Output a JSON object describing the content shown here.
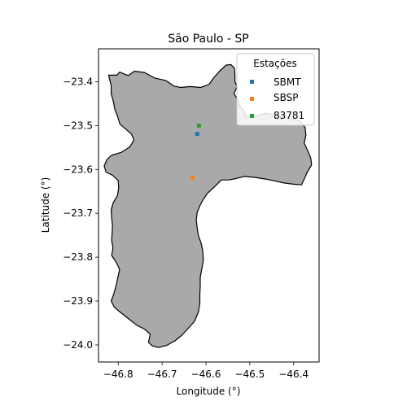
{
  "title": "São Paulo - SP",
  "xlabel": "Longitude (°)",
  "ylabel": "Latitude (°)",
  "xlim": [
    -46.845,
    -46.342
  ],
  "ylim": [
    -24.039,
    -23.325
  ],
  "x_ticks": [
    {
      "v": -46.8,
      "label": "−46.8"
    },
    {
      "v": -46.7,
      "label": "−46.7"
    },
    {
      "v": -46.6,
      "label": "−46.6"
    },
    {
      "v": -46.5,
      "label": "−46.5"
    },
    {
      "v": -46.4,
      "label": "−46.4"
    }
  ],
  "y_ticks": [
    {
      "v": -23.4,
      "label": "−23.4"
    },
    {
      "v": -23.5,
      "label": "−23.5"
    },
    {
      "v": -23.6,
      "label": "−23.6"
    },
    {
      "v": -23.7,
      "label": "−23.7"
    },
    {
      "v": -23.8,
      "label": "−23.8"
    },
    {
      "v": -23.9,
      "label": "−23.9"
    },
    {
      "v": -24.0,
      "label": "−24.0"
    }
  ],
  "legend": {
    "title": "Estações",
    "placement": "top-right",
    "entries": [
      "SBMT",
      "SBSP",
      "83781"
    ]
  },
  "colors": {
    "region_fill": "#a9a9a9",
    "region_edge": "#000000",
    "SBMT": "#1f77b4",
    "SBSP": "#ff7f0e",
    "83781": "#2ca02c"
  },
  "stations": [
    {
      "name": "SBMT",
      "lon": -46.62,
      "lat": -23.519
    },
    {
      "name": "SBSP",
      "lon": -46.631,
      "lat": -23.619
    },
    {
      "name": "83781",
      "lon": -46.616,
      "lat": -23.5
    }
  ],
  "boundary": [
    [
      -46.822,
      -23.385
    ],
    [
      -46.803,
      -23.385
    ],
    [
      -46.797,
      -23.378
    ],
    [
      -46.777,
      -23.386
    ],
    [
      -46.763,
      -23.376
    ],
    [
      -46.74,
      -23.379
    ],
    [
      -46.716,
      -23.392
    ],
    [
      -46.692,
      -23.397
    ],
    [
      -46.673,
      -23.41
    ],
    [
      -46.657,
      -23.413
    ],
    [
      -46.636,
      -23.411
    ],
    [
      -46.612,
      -23.413
    ],
    [
      -46.593,
      -23.406
    ],
    [
      -46.583,
      -23.392
    ],
    [
      -46.57,
      -23.377
    ],
    [
      -46.554,
      -23.362
    ],
    [
      -46.543,
      -23.361
    ],
    [
      -46.535,
      -23.369
    ],
    [
      -46.534,
      -23.384
    ],
    [
      -46.534,
      -23.4
    ],
    [
      -46.529,
      -23.411
    ],
    [
      -46.536,
      -23.427
    ],
    [
      -46.528,
      -23.441
    ],
    [
      -46.522,
      -23.457
    ],
    [
      -46.514,
      -23.465
    ],
    [
      -46.51,
      -23.479
    ],
    [
      -46.498,
      -23.481
    ],
    [
      -46.481,
      -23.477
    ],
    [
      -46.466,
      -23.472
    ],
    [
      -46.445,
      -23.475
    ],
    [
      -46.426,
      -23.479
    ],
    [
      -46.403,
      -23.485
    ],
    [
      -46.386,
      -23.49
    ],
    [
      -46.374,
      -23.504
    ],
    [
      -46.372,
      -23.522
    ],
    [
      -46.376,
      -23.54
    ],
    [
      -46.368,
      -23.557
    ],
    [
      -46.361,
      -23.574
    ],
    [
      -46.359,
      -23.59
    ],
    [
      -46.369,
      -23.606
    ],
    [
      -46.375,
      -23.62
    ],
    [
      -46.382,
      -23.635
    ],
    [
      -46.397,
      -23.634
    ],
    [
      -46.421,
      -23.631
    ],
    [
      -46.44,
      -23.627
    ],
    [
      -46.464,
      -23.622
    ],
    [
      -46.489,
      -23.618
    ],
    [
      -46.513,
      -23.616
    ],
    [
      -46.532,
      -23.621
    ],
    [
      -46.548,
      -23.624
    ],
    [
      -46.565,
      -23.624
    ],
    [
      -46.581,
      -23.64
    ],
    [
      -46.597,
      -23.655
    ],
    [
      -46.607,
      -23.67
    ],
    [
      -46.614,
      -23.683
    ],
    [
      -46.62,
      -23.698
    ],
    [
      -46.622,
      -23.716
    ],
    [
      -46.62,
      -23.733
    ],
    [
      -46.617,
      -23.751
    ],
    [
      -46.611,
      -23.768
    ],
    [
      -46.607,
      -23.787
    ],
    [
      -46.606,
      -23.807
    ],
    [
      -46.609,
      -23.825
    ],
    [
      -46.613,
      -23.846
    ],
    [
      -46.613,
      -23.865
    ],
    [
      -46.614,
      -23.885
    ],
    [
      -46.614,
      -23.905
    ],
    [
      -46.617,
      -23.925
    ],
    [
      -46.626,
      -23.946
    ],
    [
      -46.64,
      -23.962
    ],
    [
      -46.655,
      -23.978
    ],
    [
      -46.671,
      -23.991
    ],
    [
      -46.689,
      -24.001
    ],
    [
      -46.708,
      -24.006
    ],
    [
      -46.723,
      -24.002
    ],
    [
      -46.731,
      -23.994
    ],
    [
      -46.727,
      -23.976
    ],
    [
      -46.74,
      -23.964
    ],
    [
      -46.758,
      -23.955
    ],
    [
      -46.778,
      -23.939
    ],
    [
      -46.796,
      -23.925
    ],
    [
      -46.809,
      -23.914
    ],
    [
      -46.816,
      -23.9
    ],
    [
      -46.81,
      -23.883
    ],
    [
      -46.805,
      -23.865
    ],
    [
      -46.801,
      -23.847
    ],
    [
      -46.797,
      -23.828
    ],
    [
      -46.804,
      -23.813
    ],
    [
      -46.815,
      -23.796
    ],
    [
      -46.812,
      -23.779
    ],
    [
      -46.815,
      -23.762
    ],
    [
      -46.814,
      -23.746
    ],
    [
      -46.813,
      -23.728
    ],
    [
      -46.815,
      -23.71
    ],
    [
      -46.816,
      -23.692
    ],
    [
      -46.811,
      -23.675
    ],
    [
      -46.802,
      -23.66
    ],
    [
      -46.799,
      -23.642
    ],
    [
      -46.8,
      -23.625
    ],
    [
      -46.813,
      -23.613
    ],
    [
      -46.828,
      -23.606
    ],
    [
      -46.832,
      -23.592
    ],
    [
      -46.826,
      -23.578
    ],
    [
      -46.816,
      -23.568
    ],
    [
      -46.793,
      -23.561
    ],
    [
      -46.774,
      -23.549
    ],
    [
      -46.764,
      -23.533
    ],
    [
      -46.77,
      -23.519
    ],
    [
      -46.783,
      -23.508
    ],
    [
      -46.796,
      -23.497
    ],
    [
      -46.802,
      -23.478
    ],
    [
      -46.808,
      -23.462
    ],
    [
      -46.811,
      -23.445
    ],
    [
      -46.816,
      -23.428
    ],
    [
      -46.816,
      -23.409
    ],
    [
      -46.822,
      -23.385
    ]
  ]
}
